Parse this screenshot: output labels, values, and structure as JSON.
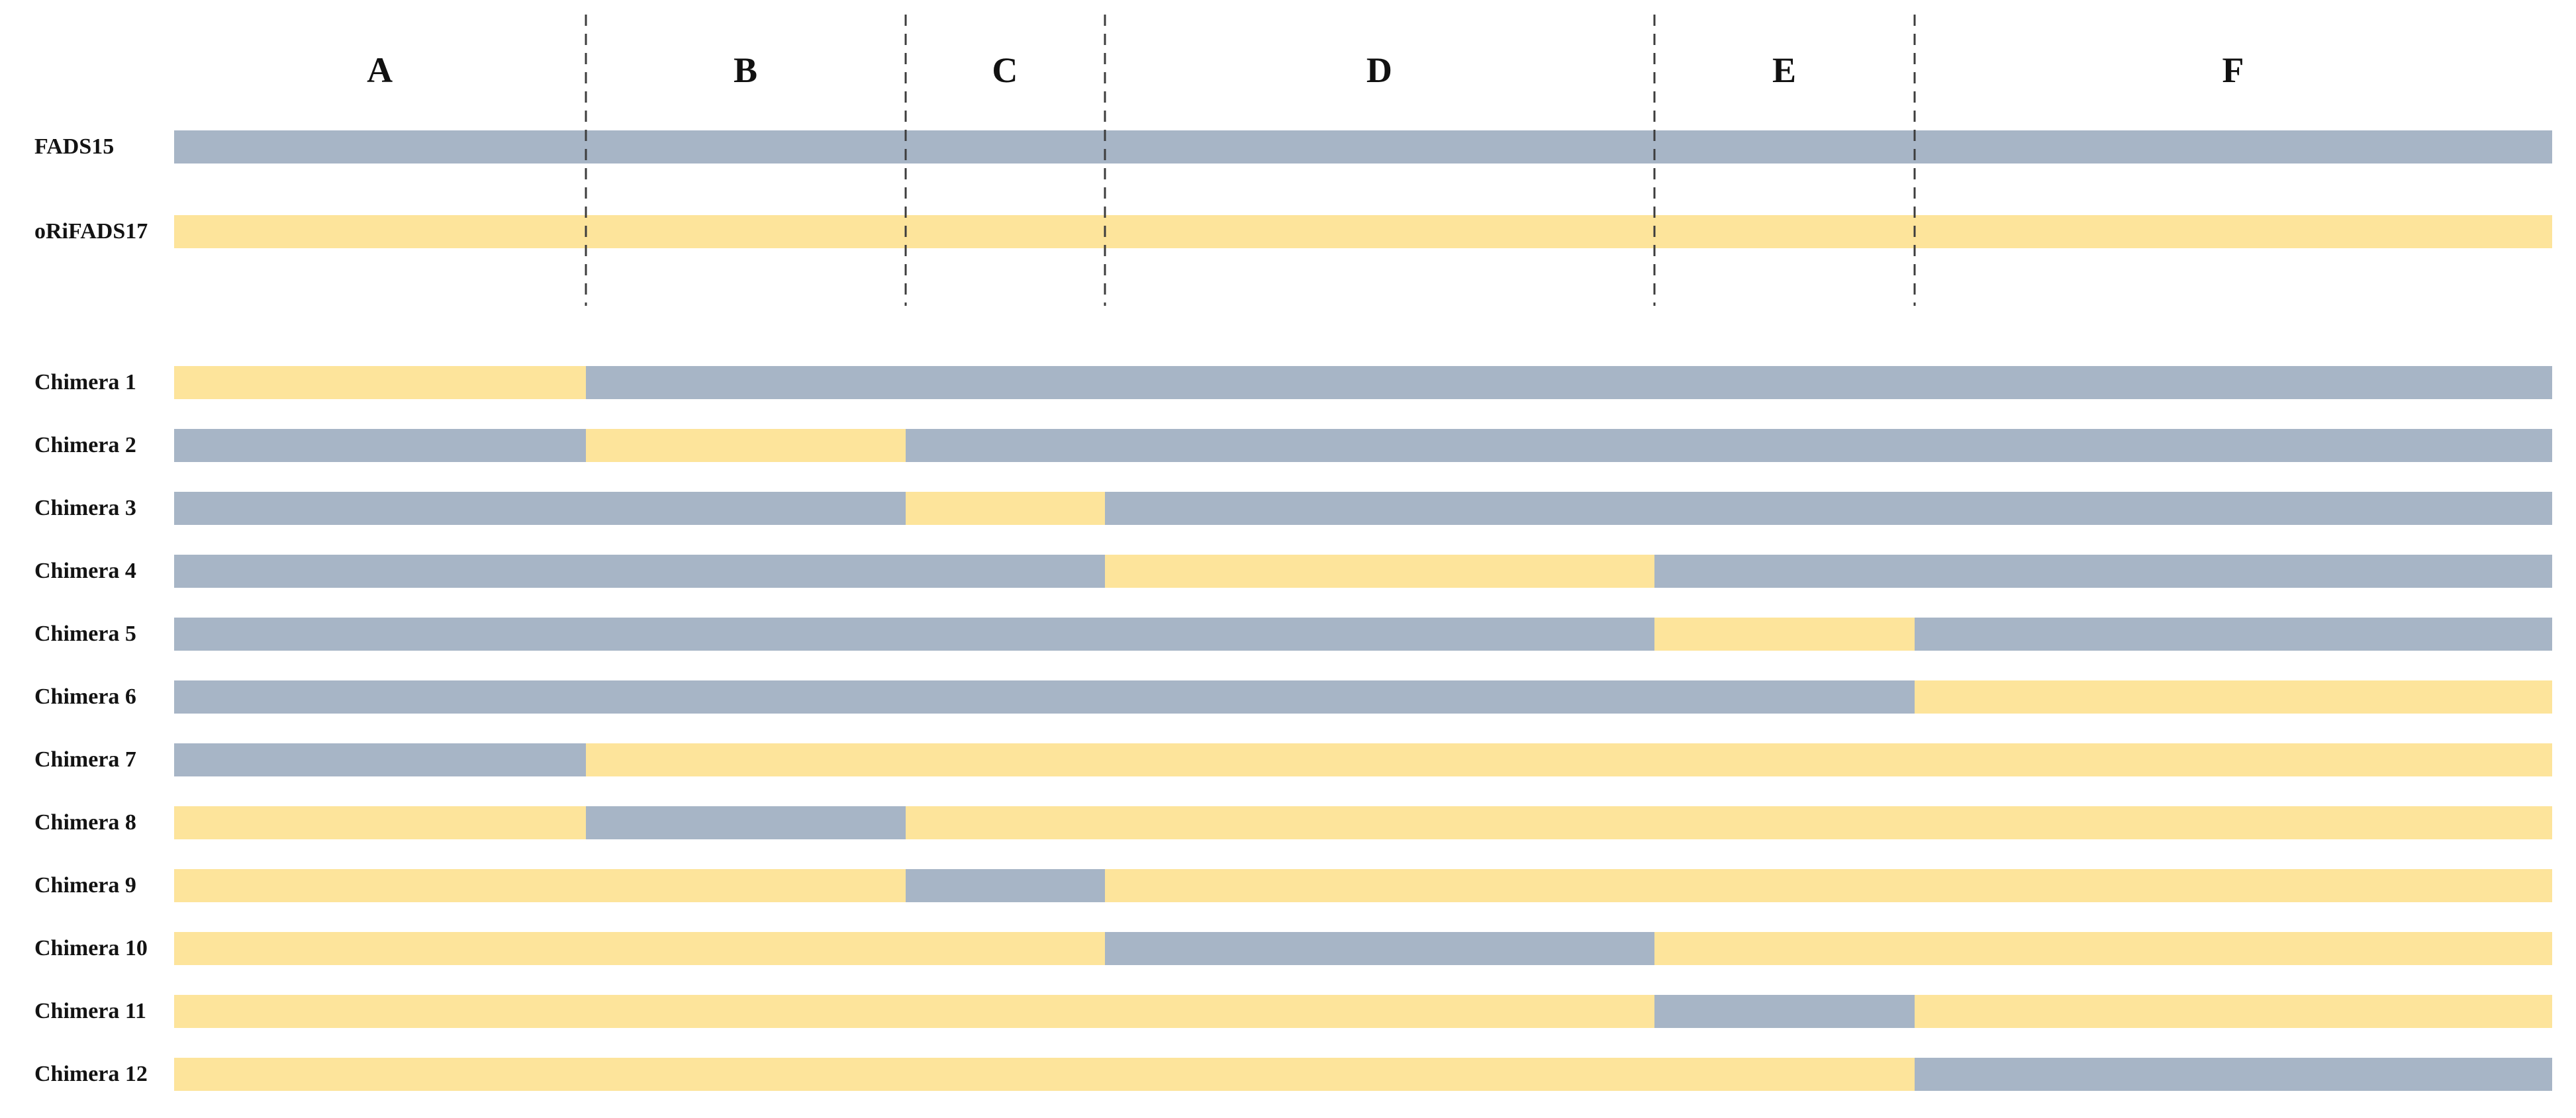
{
  "figure": {
    "region_labels": [
      "A",
      "B",
      "C",
      "D",
      "E",
      "F"
    ],
    "region_widths_pct": [
      17.32,
      13.44,
      8.38,
      23.11,
      10.94,
      26.81
    ],
    "sources": [
      {
        "name": "FADS15",
        "color": "#a7b5c6"
      },
      {
        "name": "oRiFADS17",
        "color": "#fde49b"
      }
    ],
    "divider_color": "#3d3d3d",
    "rows": [
      {
        "label": "FADS15",
        "segments": [
          "FADS15",
          "FADS15",
          "FADS15",
          "FADS15",
          "FADS15",
          "FADS15"
        ]
      },
      {
        "label": "oRiFADS17",
        "segments": [
          "oRiFADS17",
          "oRiFADS17",
          "oRiFADS17",
          "oRiFADS17",
          "oRiFADS17",
          "oRiFADS17"
        ]
      },
      {
        "label": "Chimera 1",
        "segments": [
          "oRiFADS17",
          "FADS15",
          "FADS15",
          "FADS15",
          "FADS15",
          "FADS15"
        ]
      },
      {
        "label": "Chimera 2",
        "segments": [
          "FADS15",
          "oRiFADS17",
          "FADS15",
          "FADS15",
          "FADS15",
          "FADS15"
        ]
      },
      {
        "label": "Chimera 3",
        "segments": [
          "FADS15",
          "FADS15",
          "oRiFADS17",
          "FADS15",
          "FADS15",
          "FADS15"
        ]
      },
      {
        "label": "Chimera 4",
        "segments": [
          "FADS15",
          "FADS15",
          "FADS15",
          "oRiFADS17",
          "FADS15",
          "FADS15"
        ]
      },
      {
        "label": "Chimera 5",
        "segments": [
          "FADS15",
          "FADS15",
          "FADS15",
          "FADS15",
          "oRiFADS17",
          "FADS15"
        ]
      },
      {
        "label": "Chimera 6",
        "segments": [
          "FADS15",
          "FADS15",
          "FADS15",
          "FADS15",
          "FADS15",
          "oRiFADS17"
        ]
      },
      {
        "label": "Chimera 7",
        "segments": [
          "FADS15",
          "oRiFADS17",
          "oRiFADS17",
          "oRiFADS17",
          "oRiFADS17",
          "oRiFADS17"
        ]
      },
      {
        "label": "Chimera 8",
        "segments": [
          "oRiFADS17",
          "FADS15",
          "oRiFADS17",
          "oRiFADS17",
          "oRiFADS17",
          "oRiFADS17"
        ]
      },
      {
        "label": "Chimera 9",
        "segments": [
          "oRiFADS17",
          "oRiFADS17",
          "FADS15",
          "oRiFADS17",
          "oRiFADS17",
          "oRiFADS17"
        ]
      },
      {
        "label": "Chimera 10",
        "segments": [
          "oRiFADS17",
          "oRiFADS17",
          "oRiFADS17",
          "FADS15",
          "oRiFADS17",
          "oRiFADS17"
        ]
      },
      {
        "label": "Chimera 11",
        "segments": [
          "oRiFADS17",
          "oRiFADS17",
          "oRiFADS17",
          "oRiFADS17",
          "FADS15",
          "oRiFADS17"
        ]
      },
      {
        "label": "Chimera 12",
        "segments": [
          "oRiFADS17",
          "oRiFADS17",
          "oRiFADS17",
          "oRiFADS17",
          "oRiFADS17",
          "FADS15"
        ]
      }
    ]
  }
}
